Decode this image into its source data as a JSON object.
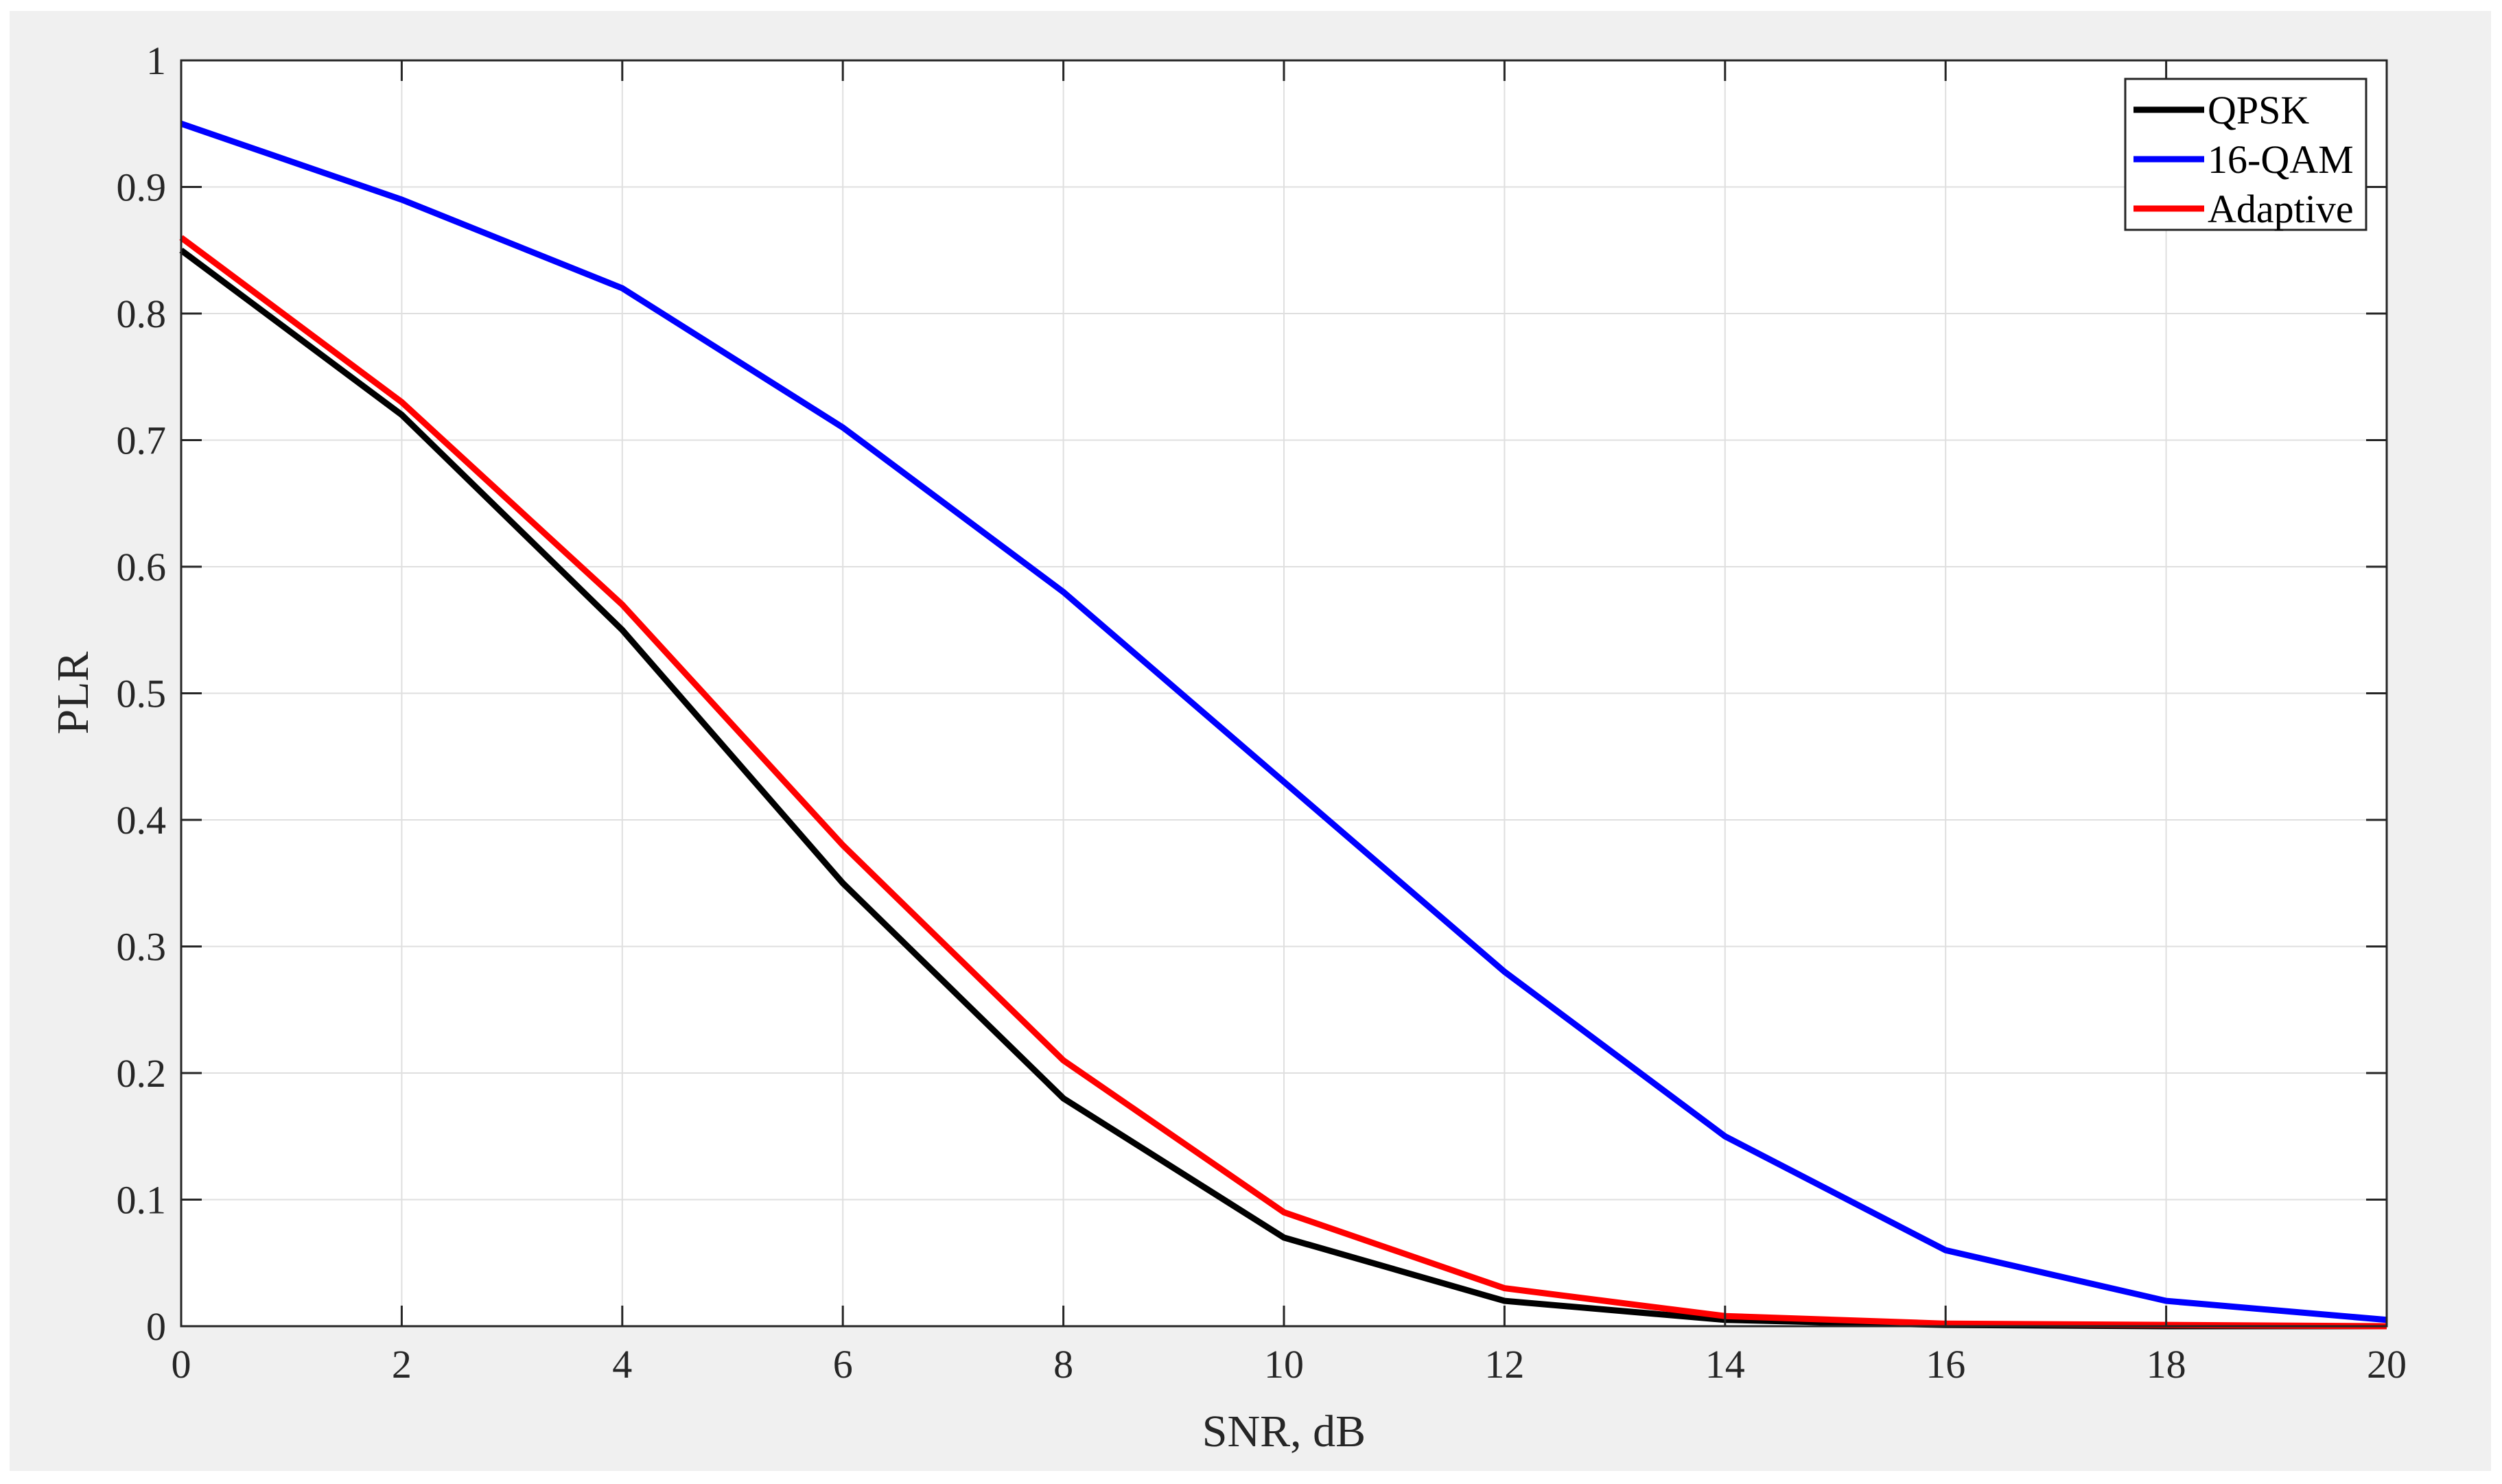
{
  "chart_data": {
    "type": "line",
    "title": "",
    "xlabel": "SNR, dB",
    "ylabel": "PLR",
    "xlim": [
      0,
      20
    ],
    "ylim": [
      0,
      1
    ],
    "xticks": [
      0,
      2,
      4,
      6,
      8,
      10,
      12,
      14,
      16,
      18,
      20
    ],
    "yticks": [
      0,
      0.1,
      0.2,
      0.3,
      0.4,
      0.5,
      0.6,
      0.7,
      0.8,
      0.9,
      1
    ],
    "x": [
      0,
      2,
      4,
      6,
      8,
      10,
      12,
      14,
      16,
      18,
      20
    ],
    "grid": true,
    "legend_position": "top-right",
    "series": [
      {
        "name": "QPSK",
        "color": "#000000",
        "values": [
          0.85,
          0.72,
          0.55,
          0.35,
          0.18,
          0.07,
          0.02,
          0.005,
          0.001,
          0.0,
          0.0
        ]
      },
      {
        "name": "16-QAM",
        "color": "#0000ff",
        "values": [
          0.95,
          0.89,
          0.82,
          0.71,
          0.58,
          0.43,
          0.28,
          0.15,
          0.06,
          0.02,
          0.005
        ]
      },
      {
        "name": "Adaptive",
        "color": "#ff0000",
        "values": [
          0.86,
          0.73,
          0.57,
          0.38,
          0.21,
          0.09,
          0.03,
          0.008,
          0.002,
          0.001,
          0.0
        ]
      }
    ]
  }
}
